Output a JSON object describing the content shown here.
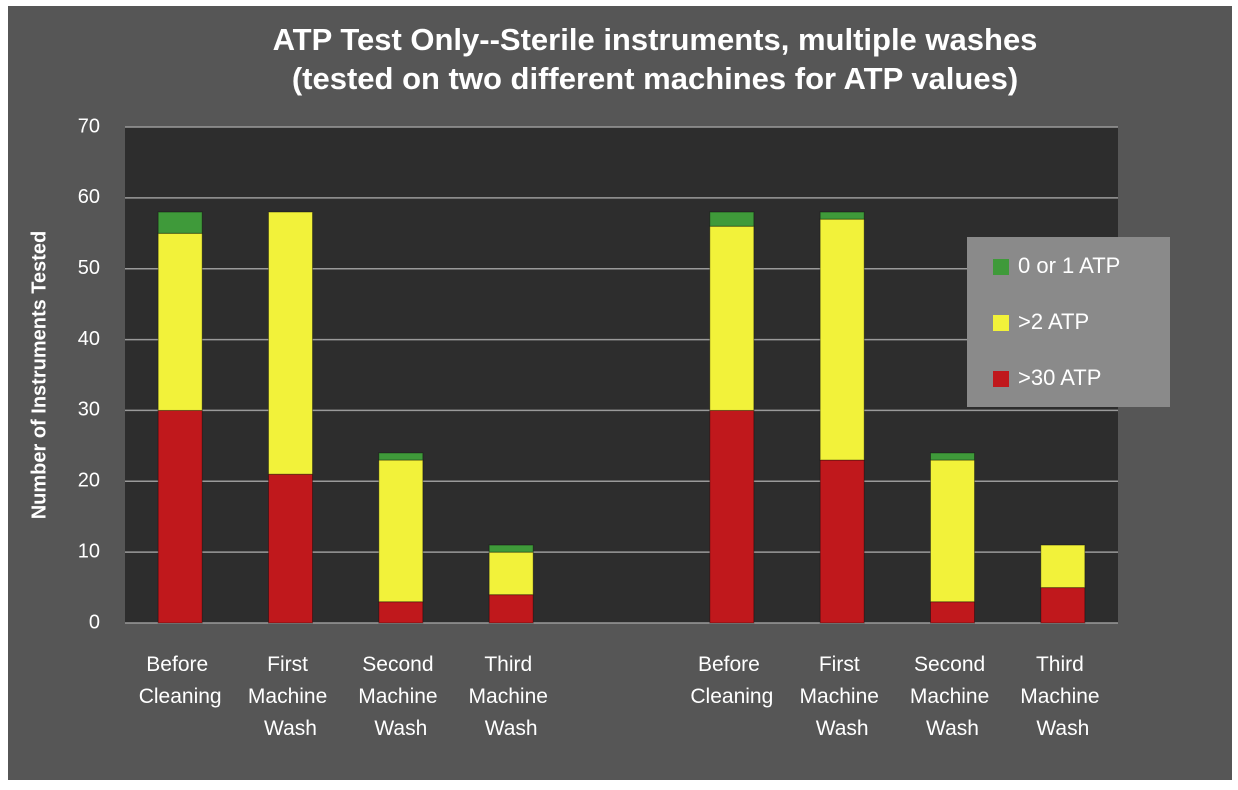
{
  "chart_data": {
    "type": "stacked-bar",
    "title": "ATP Test Only--Sterile instruments, multiple washes",
    "subtitle": "(tested on two different machines for ATP values)",
    "y_label": "Number of Instruments Tested",
    "categories": [
      "Before Cleaning",
      "First Machine Wash",
      "Second Machine Wash",
      "Third Machine Wash",
      null,
      "Before Cleaning",
      "First Machine Wash",
      "Second Machine Wash",
      "Third Machine Wash"
    ],
    "series": [
      {
        "name": ">30 ATP",
        "color": "#c0181c",
        "values": [
          30,
          21,
          3,
          4,
          null,
          30,
          23,
          3,
          5
        ]
      },
      {
        "name": ">2 ATP",
        "color": "#f2f23a",
        "values": [
          25,
          37,
          20,
          6,
          null,
          26,
          34,
          20,
          6
        ]
      },
      {
        "name": "0 or 1 ATP",
        "color": "#3f9a3a",
        "values": [
          3,
          0,
          1,
          1,
          null,
          2,
          1,
          1,
          0
        ]
      }
    ],
    "ylim": [
      0,
      70
    ],
    "yticks": [
      0,
      10,
      20,
      30,
      40,
      50,
      60,
      70
    ],
    "grid": true,
    "legend": "right"
  }
}
